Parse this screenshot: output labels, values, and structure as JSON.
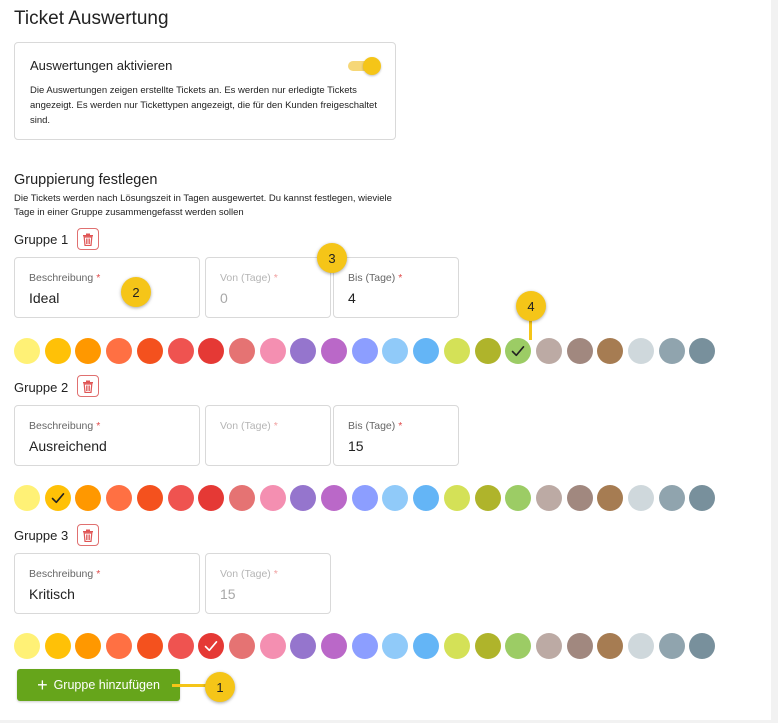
{
  "title": "Ticket Auswertung",
  "activation": {
    "label": "Auswertungen aktivieren",
    "enabled": true,
    "description": "Die Auswertungen zeigen erstellte Tickets an. Es werden nur erledigte Tickets angezeigt. Es werden nur Tickettypen angezeigt, die für den Kunden freigeschaltet sind.",
    "toggle_color": "#f5c518"
  },
  "grouping": {
    "title": "Gruppierung festlegen",
    "description": "Die Tickets werden nach Lösungszeit in Tagen ausgewertet. Du kannst festlegen, wieviele Tage in einer Gruppe zusammengefasst werden sollen"
  },
  "field_labels": {
    "description": "Beschreibung",
    "from": "Von (Tage)",
    "to": "Bis (Tage)",
    "required_mark": "*"
  },
  "palette": [
    "#fff176",
    "#ffc107",
    "#ff9800",
    "#ff7043",
    "#f4511e",
    "#ef5350",
    "#e53935",
    "#e57373",
    "#f48fb1",
    "#9575cd",
    "#ba68c8",
    "#8c9eff",
    "#90caf9",
    "#64b5f6",
    "#d4e157",
    "#afb42b",
    "#9ccc65",
    "#bcaaa4",
    "#a1887f",
    "#a67c52",
    "#cfd8dc",
    "#90a4ae",
    "#78909c"
  ],
  "groups": [
    {
      "label": "Gruppe 1",
      "description": "Ideal",
      "from": "0",
      "to": "4",
      "selected_color_index": 16,
      "has_to_field": true
    },
    {
      "label": "Gruppe 2",
      "description": "Ausreichend",
      "from": "",
      "to": "15",
      "selected_color_index": 1,
      "has_to_field": true
    },
    {
      "label": "Gruppe 3",
      "description": "Kritisch",
      "from": "15",
      "to": "",
      "selected_color_index": 6,
      "has_to_field": false
    }
  ],
  "add_button": {
    "icon": "plus-icon",
    "label": "Gruppe hinzufügen",
    "color": "#66a51b"
  },
  "markers": [
    "1",
    "2",
    "3",
    "4"
  ]
}
